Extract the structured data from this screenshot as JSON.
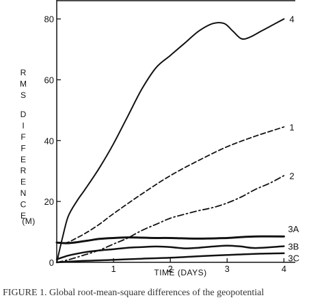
{
  "chart_data": {
    "type": "line",
    "title": "",
    "xlabel": "TIME (DAYS)",
    "ylabel_words": [
      "RMS",
      "DIFFERENCE"
    ],
    "ylabel_unit": "(M)",
    "xlim": [
      0,
      4.2
    ],
    "ylim": [
      0,
      86
    ],
    "xticks": [
      1,
      2,
      3,
      4
    ],
    "yticks": [
      0,
      20,
      40,
      60,
      80
    ],
    "grid": false,
    "series": [
      {
        "name": "4",
        "style": "solid",
        "width": 2,
        "x": [
          0,
          0.1,
          0.2,
          0.35,
          0.5,
          0.75,
          1.0,
          1.25,
          1.5,
          1.75,
          2.0,
          2.25,
          2.5,
          2.75,
          2.95,
          3.1,
          3.25,
          3.4,
          3.6,
          3.8,
          4.0
        ],
        "y": [
          0,
          8,
          15,
          20,
          24,
          31,
          39,
          48,
          57,
          64,
          68,
          72,
          76,
          78.5,
          78.5,
          76,
          73.5,
          74,
          76,
          78,
          80
        ]
      },
      {
        "name": "1",
        "style": "dashed",
        "width": 1.8,
        "x": [
          0,
          0.1,
          0.2,
          0.3,
          0.5,
          0.75,
          1.0,
          1.5,
          2.0,
          2.5,
          3.0,
          3.5,
          4.0
        ],
        "y": [
          6.5,
          6.4,
          6.6,
          7.5,
          9.5,
          12.5,
          16,
          22.5,
          28.5,
          33.5,
          38,
          41.5,
          44.5
        ]
      },
      {
        "name": "2",
        "style": "dashdot",
        "width": 1.8,
        "x": [
          0,
          0.2,
          0.5,
          0.75,
          1.0,
          1.25,
          1.5,
          1.75,
          2.0,
          2.25,
          2.5,
          2.75,
          3.0,
          3.25,
          3.5,
          3.75,
          4.0
        ],
        "y": [
          0,
          0.8,
          2.5,
          4,
          6,
          8,
          10.5,
          12.5,
          14.5,
          15.8,
          17,
          18,
          19.5,
          21.5,
          24,
          26,
          28.5
        ]
      },
      {
        "name": "3A",
        "style": "solid",
        "width": 3,
        "x": [
          0,
          0.2,
          0.5,
          0.75,
          1.0,
          1.25,
          1.5,
          1.75,
          2.0,
          2.5,
          3.0,
          3.25,
          3.5,
          4.0
        ],
        "y": [
          6.5,
          6.3,
          7,
          7.7,
          8,
          8.2,
          8.1,
          8,
          8,
          7.8,
          8,
          8.3,
          8.5,
          8.5
        ]
      },
      {
        "name": "3B",
        "style": "solid",
        "width": 2.5,
        "x": [
          0,
          0.2,
          0.4,
          0.6,
          0.8,
          1.0,
          1.25,
          1.5,
          1.75,
          2.0,
          2.25,
          2.5,
          2.75,
          3.0,
          3.25,
          3.5,
          4.0
        ],
        "y": [
          1,
          2.2,
          3,
          3.6,
          4,
          4.3,
          4.8,
          5,
          5.2,
          5,
          4.6,
          4.8,
          5.2,
          5.5,
          5.2,
          4.7,
          5.3
        ]
      },
      {
        "name": "3C",
        "style": "solid",
        "width": 2.5,
        "x": [
          0,
          0.5,
          1.0,
          1.5,
          2.0,
          2.5,
          3.0,
          3.5,
          4.0
        ],
        "y": [
          0,
          0.5,
          0.8,
          1.2,
          1.5,
          2,
          2.4,
          2.8,
          3
        ]
      }
    ]
  },
  "caption": "FIGURE 1. Global root-mean-square differences of the geopotential"
}
